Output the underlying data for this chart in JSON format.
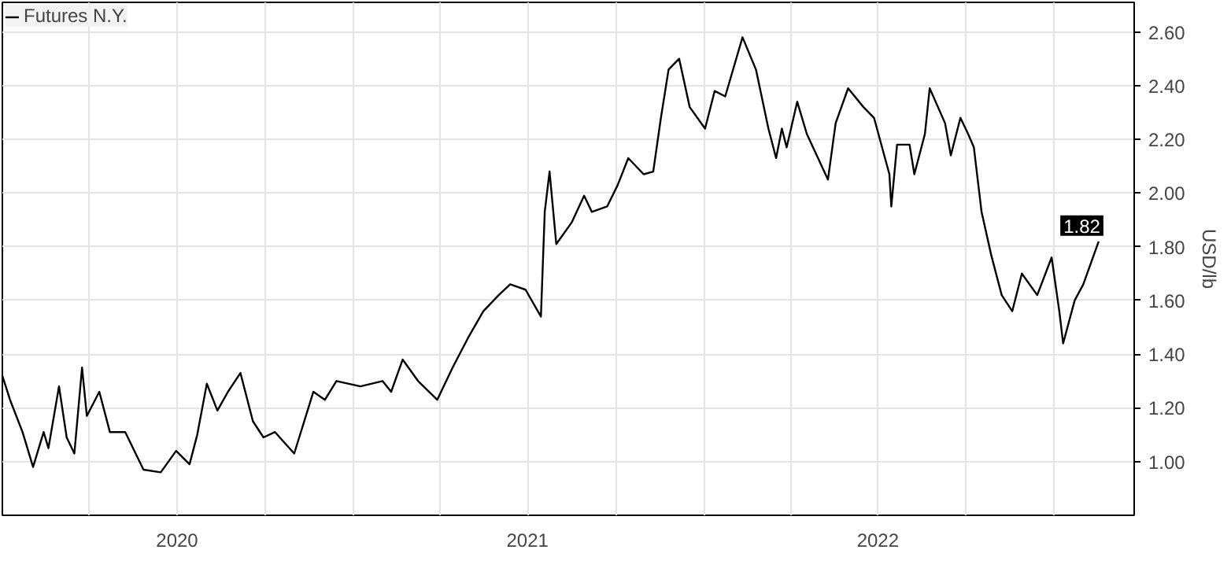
{
  "chart_data": {
    "type": "line",
    "ylabel": "USD/lb",
    "legend": "top left",
    "grid": true,
    "marker": "none",
    "line_style": "solid",
    "xlim": [
      "2020-01-01",
      "2023-03-25"
    ],
    "ylim": [
      0.8,
      2.71
    ],
    "xticks": [
      {
        "value": "2020-01-01",
        "label": null
      },
      {
        "value": "2020-04-01",
        "label": null
      },
      {
        "value": "2020-07-01",
        "label": "2020"
      },
      {
        "value": "2020-10-01",
        "label": null
      },
      {
        "value": "2021-01-01",
        "label": null
      },
      {
        "value": "2021-04-01",
        "label": null
      },
      {
        "value": "2021-07-01",
        "label": "2021"
      },
      {
        "value": "2021-10-01",
        "label": null
      },
      {
        "value": "2022-01-01",
        "label": null
      },
      {
        "value": "2022-04-01",
        "label": null
      },
      {
        "value": "2022-07-01",
        "label": "2022"
      },
      {
        "value": "2022-10-01",
        "label": null
      },
      {
        "value": "2023-01-01",
        "label": null
      }
    ],
    "yticks": [
      {
        "value": 1.0,
        "label": "1.00"
      },
      {
        "value": 1.2,
        "label": "1.20"
      },
      {
        "value": 1.4,
        "label": "1.40"
      },
      {
        "value": 1.6,
        "label": "1.60"
      },
      {
        "value": 1.8,
        "label": "1.80"
      },
      {
        "value": 2.0,
        "label": "2.00"
      },
      {
        "value": 2.2,
        "label": "2.20"
      },
      {
        "value": 2.4,
        "label": "2.40"
      },
      {
        "value": 2.6,
        "label": "2.60"
      }
    ],
    "annotations": [
      {
        "text": "1.82",
        "x": "2023-02-16",
        "y": 1.82
      }
    ],
    "series": [
      {
        "name": "Futures N.Y.",
        "color": "#000000",
        "x": [
          "2020-01-01",
          "2020-01-09",
          "2020-01-22",
          "2020-02-02",
          "2020-02-13",
          "2020-02-18",
          "2020-02-29",
          "2020-03-08",
          "2020-03-16",
          "2020-03-24",
          "2020-03-29",
          "2020-04-11",
          "2020-04-22",
          "2020-05-08",
          "2020-05-27",
          "2020-06-14",
          "2020-06-30",
          "2020-07-14",
          "2020-07-22",
          "2020-08-01",
          "2020-08-12",
          "2020-08-23",
          "2020-09-05",
          "2020-09-18",
          "2020-09-29",
          "2020-10-11",
          "2020-10-31",
          "2020-11-20",
          "2020-12-02",
          "2020-12-14",
          "2021-01-08",
          "2021-01-31",
          "2021-02-09",
          "2021-02-21",
          "2021-03-09",
          "2021-03-29",
          "2021-04-14",
          "2021-04-30",
          "2021-05-16",
          "2021-06-01",
          "2021-06-13",
          "2021-06-29",
          "2021-07-15",
          "2021-07-19",
          "2021-07-24",
          "2021-07-31",
          "2021-08-16",
          "2021-08-29",
          "2021-09-06",
          "2021-09-22",
          "2021-10-03",
          "2021-10-14",
          "2021-10-30",
          "2021-11-09",
          "2021-11-17",
          "2021-11-25",
          "2021-12-06",
          "2021-12-17",
          "2022-01-02",
          "2022-01-12",
          "2022-01-23",
          "2022-02-10",
          "2022-02-24",
          "2022-03-09",
          "2022-03-17",
          "2022-03-23",
          "2022-03-28",
          "2022-04-08",
          "2022-04-18",
          "2022-05-10",
          "2022-05-18",
          "2022-05-31",
          "2022-06-16",
          "2022-06-27",
          "2022-07-13",
          "2022-07-15",
          "2022-07-21",
          "2022-08-03",
          "2022-08-08",
          "2022-08-19",
          "2022-08-24",
          "2022-09-09",
          "2022-09-15",
          "2022-09-25",
          "2022-10-03",
          "2022-10-09",
          "2022-10-17",
          "2022-10-27",
          "2022-11-07",
          "2022-11-18",
          "2022-11-28",
          "2022-12-14",
          "2022-12-29",
          "2023-01-06",
          "2023-01-10",
          "2023-01-22",
          "2023-01-31",
          "2023-02-16"
        ],
        "values": [
          1.32,
          1.23,
          1.11,
          0.98,
          1.11,
          1.05,
          1.28,
          1.09,
          1.03,
          1.35,
          1.17,
          1.26,
          1.11,
          1.11,
          0.97,
          0.96,
          1.04,
          0.99,
          1.1,
          1.29,
          1.19,
          1.26,
          1.33,
          1.15,
          1.09,
          1.11,
          1.03,
          1.26,
          1.23,
          1.3,
          1.28,
          1.3,
          1.26,
          1.38,
          1.3,
          1.23,
          1.35,
          1.46,
          1.56,
          1.62,
          1.66,
          1.64,
          1.54,
          1.93,
          2.08,
          1.81,
          1.89,
          1.99,
          1.93,
          1.95,
          2.03,
          2.13,
          2.07,
          2.08,
          2.28,
          2.46,
          2.5,
          2.32,
          2.24,
          2.38,
          2.36,
          2.58,
          2.46,
          2.24,
          2.13,
          2.24,
          2.17,
          2.34,
          2.22,
          2.05,
          2.26,
          2.39,
          2.32,
          2.28,
          2.07,
          1.95,
          2.18,
          2.18,
          2.07,
          2.22,
          2.39,
          2.26,
          2.14,
          2.28,
          2.22,
          2.17,
          1.93,
          1.77,
          1.62,
          1.56,
          1.7,
          1.62,
          1.76,
          1.56,
          1.44,
          1.6,
          1.66,
          1.82
        ]
      }
    ]
  }
}
